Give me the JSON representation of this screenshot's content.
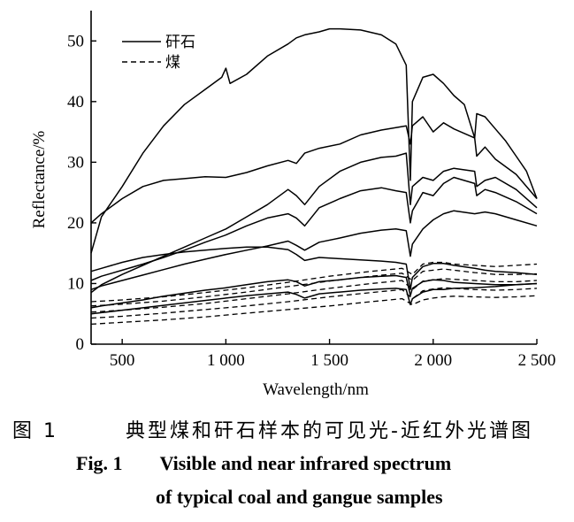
{
  "chart_data": {
    "type": "line",
    "xlabel": "Wavelength/nm",
    "ylabel": "Reflectance/%",
    "xlim": [
      350,
      2500
    ],
    "ylim": [
      0,
      55
    ],
    "x_ticks": [
      500,
      1000,
      1500,
      2000,
      2500
    ],
    "x_tick_labels": [
      "500",
      "1 000",
      "1 500",
      "2 000",
      "2 500"
    ],
    "y_ticks": [
      0,
      10,
      20,
      30,
      40,
      50
    ],
    "y_tick_labels": [
      "0",
      "10",
      "20",
      "30",
      "40",
      "50"
    ],
    "legend": {
      "position": "top-left",
      "entries": [
        {
          "label": "矸石",
          "style": "solid"
        },
        {
          "label": "煤",
          "style": "dashed"
        }
      ]
    },
    "series": [
      {
        "style": "solid",
        "x": [
          350,
          400,
          500,
          600,
          700,
          800,
          900,
          980,
          1000,
          1020,
          1100,
          1200,
          1300,
          1340,
          1380,
          1450,
          1500,
          1550,
          1650,
          1750,
          1820,
          1870,
          1890,
          1900,
          1950,
          2000,
          2050,
          2100,
          2150,
          2200,
          2210,
          2250,
          2300,
          2350,
          2400,
          2450,
          2500
        ],
        "y": [
          15,
          21,
          26,
          31.5,
          36,
          39.5,
          42,
          44,
          45.5,
          43,
          44.5,
          47.5,
          49.5,
          50.5,
          51,
          51.5,
          52,
          52,
          51.8,
          51,
          49.5,
          46,
          27,
          40,
          44,
          44.5,
          43,
          41,
          39.5,
          34,
          38,
          37.5,
          35.5,
          33.5,
          31,
          28.5,
          24
        ]
      },
      {
        "style": "solid",
        "x": [
          350,
          400,
          500,
          600,
          700,
          800,
          900,
          1000,
          1100,
          1200,
          1300,
          1340,
          1380,
          1450,
          1550,
          1650,
          1750,
          1820,
          1870,
          1890,
          1900,
          1950,
          2000,
          2050,
          2100,
          2200,
          2210,
          2250,
          2300,
          2400,
          2500
        ],
        "y": [
          20,
          21.5,
          24,
          26,
          27,
          27.3,
          27.6,
          27.5,
          28.3,
          29.4,
          30.3,
          29.8,
          31.5,
          32.3,
          33,
          34.5,
          35.3,
          35.7,
          36,
          33,
          36,
          37.5,
          35,
          36.5,
          35.5,
          34,
          31,
          32.5,
          30.5,
          28,
          24
        ]
      },
      {
        "style": "solid",
        "x": [
          350,
          400,
          500,
          600,
          700,
          800,
          900,
          1000,
          1100,
          1200,
          1300,
          1340,
          1380,
          1450,
          1550,
          1650,
          1750,
          1820,
          1870,
          1890,
          1900,
          1950,
          2000,
          2050,
          2100,
          2200,
          2210,
          2250,
          2300,
          2400,
          2500
        ],
        "y": [
          8.5,
          9.8,
          11.5,
          13,
          14.5,
          16,
          17.5,
          19,
          21,
          23,
          25.5,
          24.5,
          23,
          26,
          28.5,
          30,
          30.8,
          31,
          31.5,
          23,
          26,
          27.5,
          27,
          28.5,
          29,
          28.5,
          26,
          27,
          27.5,
          25.5,
          22.5
        ]
      },
      {
        "style": "solid",
        "x": [
          350,
          400,
          500,
          600,
          700,
          800,
          900,
          1000,
          1100,
          1200,
          1300,
          1340,
          1380,
          1450,
          1550,
          1650,
          1750,
          1820,
          1870,
          1890,
          1900,
          1950,
          2000,
          2050,
          2100,
          2200,
          2210,
          2250,
          2300,
          2400,
          2500
        ],
        "y": [
          10.5,
          11.2,
          12.2,
          13.2,
          14.3,
          15.5,
          16.8,
          18,
          19.5,
          20.8,
          21.5,
          20.8,
          19.5,
          22.5,
          24,
          25.3,
          25.8,
          25.3,
          25,
          20,
          22,
          25,
          24.5,
          26.5,
          27.5,
          26.5,
          24.5,
          25.5,
          25,
          23.5,
          21.5
        ]
      },
      {
        "style": "solid",
        "x": [
          350,
          400,
          500,
          600,
          700,
          800,
          900,
          1000,
          1100,
          1200,
          1300,
          1340,
          1380,
          1450,
          1550,
          1650,
          1750,
          1820,
          1870,
          1890,
          1900,
          1950,
          2000,
          2050,
          2100,
          2200,
          2250,
          2300,
          2400,
          2500
        ],
        "y": [
          9,
          9.6,
          10.5,
          11.4,
          12.3,
          13.2,
          14,
          14.8,
          15.5,
          16.2,
          17,
          16.3,
          15.5,
          16.8,
          17.5,
          18.3,
          18.8,
          19,
          18.7,
          14.5,
          16.5,
          19,
          20.5,
          21.5,
          22,
          21.5,
          21.8,
          21.5,
          20.5,
          19.5
        ]
      },
      {
        "style": "solid",
        "x": [
          350,
          400,
          500,
          600,
          700,
          800,
          900,
          1000,
          1100,
          1200,
          1300,
          1340,
          1380,
          1450,
          1550,
          1650,
          1750,
          1820,
          1870,
          1890,
          1900,
          1950,
          2000,
          2050,
          2100,
          2200,
          2250,
          2300,
          2400,
          2500
        ],
        "y": [
          12,
          12.5,
          13.5,
          14.3,
          14.8,
          15.2,
          15.5,
          15.8,
          16,
          16,
          15.6,
          14.8,
          13.8,
          14.3,
          14.1,
          13.9,
          13.7,
          13.5,
          13.2,
          9,
          11,
          12.8,
          13.3,
          13.3,
          13,
          12.5,
          12.2,
          12,
          11.8,
          11.5
        ]
      },
      {
        "style": "solid",
        "x": [
          350,
          400,
          500,
          600,
          700,
          800,
          900,
          1000,
          1100,
          1200,
          1300,
          1340,
          1380,
          1450,
          1550,
          1650,
          1750,
          1820,
          1870,
          1890,
          1900,
          1950,
          2000,
          2050,
          2100,
          2200,
          2300,
          2400,
          2500
        ],
        "y": [
          6,
          6.3,
          6.8,
          7.3,
          7.9,
          8.4,
          8.9,
          9.3,
          9.8,
          10.3,
          10.6,
          10.3,
          9.6,
          10.3,
          10.6,
          11,
          11.2,
          11.3,
          11,
          8,
          9.2,
          10.3,
          10.6,
          10.5,
          10.2,
          10,
          9.8,
          9.8,
          10
        ]
      },
      {
        "style": "solid",
        "x": [
          350,
          400,
          500,
          600,
          700,
          800,
          900,
          1000,
          1100,
          1200,
          1300,
          1340,
          1380,
          1450,
          1550,
          1650,
          1750,
          1820,
          1870,
          1890,
          1900,
          1950,
          2000,
          2050,
          2100,
          2200,
          2300,
          2400,
          2500
        ],
        "y": [
          5,
          5.2,
          5.6,
          6,
          6.4,
          6.8,
          7.2,
          7.6,
          8,
          8.3,
          8.6,
          8.2,
          7.6,
          8.3,
          8.6,
          8.9,
          9.1,
          9.2,
          9,
          6.5,
          7.5,
          8.6,
          9,
          9,
          9.2,
          9.3,
          9.5,
          9.8,
          10
        ]
      },
      {
        "style": "dashed",
        "x": [
          350,
          500,
          700,
          900,
          1100,
          1300,
          1500,
          1700,
          1850,
          1900,
          1950,
          2000,
          2050,
          2100,
          2200,
          2300,
          2400,
          2500
        ],
        "y": [
          7,
          7.3,
          7.8,
          8.5,
          9.3,
          10.2,
          11.2,
          12,
          12.5,
          11.5,
          13.2,
          13.5,
          13.5,
          13.2,
          13,
          12.8,
          13,
          13.2
        ]
      },
      {
        "style": "dashed",
        "x": [
          350,
          500,
          700,
          900,
          1100,
          1300,
          1500,
          1700,
          1850,
          1900,
          1950,
          2000,
          2050,
          2100,
          2200,
          2300,
          2400,
          2500
        ],
        "y": [
          6.3,
          6.6,
          7.1,
          7.8,
          8.6,
          9.5,
          10.4,
          11.2,
          11.7,
          10.5,
          12,
          12.2,
          12.4,
          12.2,
          11.8,
          11.5,
          11.5,
          11.6
        ]
      },
      {
        "style": "dashed",
        "x": [
          350,
          500,
          700,
          900,
          1100,
          1300,
          1500,
          1700,
          1850,
          1900,
          1950,
          2000,
          2050,
          2100,
          2200,
          2300,
          2400,
          2500
        ],
        "y": [
          5.3,
          5.6,
          6.1,
          6.7,
          7.5,
          8.3,
          9.2,
          10,
          10.5,
          9,
          10.4,
          10.6,
          10.8,
          10.7,
          10.5,
          10.3,
          10.3,
          10.5
        ]
      },
      {
        "style": "dashed",
        "x": [
          350,
          500,
          700,
          900,
          1100,
          1300,
          1500,
          1700,
          1850,
          1900,
          1950,
          2000,
          2050,
          2100,
          2200,
          2300,
          2400,
          2500
        ],
        "y": [
          4.3,
          4.6,
          5.1,
          5.7,
          6.3,
          7,
          7.8,
          8.5,
          9,
          7.5,
          8.8,
          9.1,
          9.3,
          9.2,
          9,
          8.9,
          9,
          9.2
        ]
      },
      {
        "style": "dashed",
        "x": [
          350,
          500,
          700,
          900,
          1100,
          1300,
          1500,
          1700,
          1850,
          1900,
          1950,
          2000,
          2050,
          2100,
          2200,
          2300,
          2400,
          2500
        ],
        "y": [
          3.3,
          3.6,
          4,
          4.5,
          5.1,
          5.7,
          6.3,
          7,
          7.5,
          6.5,
          7.3,
          7.6,
          7.8,
          7.9,
          7.8,
          7.7,
          7.8,
          8
        ]
      }
    ]
  },
  "caption": {
    "zh_label": "图 1",
    "zh_text": "典型煤和矸石样本的可见光-近红外光谱图",
    "en_label": "Fig. 1",
    "en_line1": "Visible and near infrared spectrum",
    "en_line2": "of typical coal and gangue samples"
  }
}
